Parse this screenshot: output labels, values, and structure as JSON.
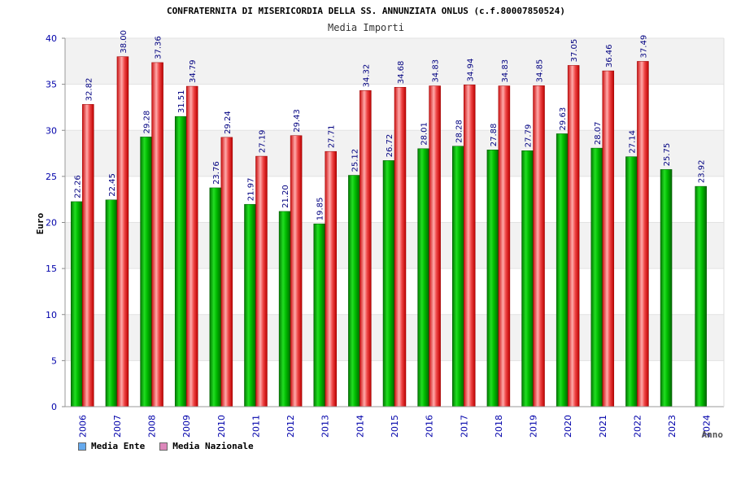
{
  "chart_data": {
    "type": "bar",
    "title": "CONFRATERNITA DI MISERICORDIA DELLA SS. ANNUNZIATA ONLUS (c.f.80007850524)",
    "subtitle": "Media Importi",
    "xlabel": "Anno",
    "ylabel": "Euro",
    "ylim": [
      0,
      40
    ],
    "yticks": [
      0,
      5,
      10,
      15,
      20,
      25,
      30,
      35,
      40
    ],
    "categories": [
      "2006",
      "2007",
      "2008",
      "2009",
      "2010",
      "2011",
      "2012",
      "2013",
      "2014",
      "2015",
      "2016",
      "2017",
      "2018",
      "2019",
      "2020",
      "2021",
      "2022",
      "2023",
      "2024"
    ],
    "series": [
      {
        "name": "Media Ente",
        "color": "#00aa00",
        "legend_color": "#66aaee",
        "values": [
          22.26,
          22.45,
          29.28,
          31.51,
          23.76,
          21.97,
          21.2,
          19.85,
          25.12,
          26.72,
          28.01,
          28.28,
          27.88,
          27.79,
          29.63,
          28.07,
          27.14,
          25.75,
          23.92
        ],
        "labels": [
          "22.26",
          "22.45",
          "29.28",
          "31.51",
          "23.76",
          "21.97",
          "21.20",
          "19.85",
          "25.12",
          "26.72",
          "28.01",
          "28.28",
          "27.88",
          "27.79",
          "29.63",
          "28.07",
          "27.14",
          "25.75",
          "23.92"
        ]
      },
      {
        "name": "Media Nazionale",
        "color": "#ee2222",
        "legend_color": "#dd88bb",
        "values": [
          32.82,
          38.0,
          37.36,
          34.79,
          29.24,
          27.19,
          29.43,
          27.71,
          34.32,
          34.68,
          34.83,
          34.94,
          34.83,
          34.85,
          37.05,
          36.46,
          37.49,
          null,
          null
        ],
        "labels": [
          "32.82",
          "38.00",
          "37.36",
          "34.79",
          "29.24",
          "27.19",
          "29.43",
          "27.71",
          "34.32",
          "34.68",
          "34.83",
          "34.94",
          "34.83",
          "34.85",
          "37.05",
          "36.46",
          "37.49",
          null,
          null
        ]
      }
    ],
    "grid": true,
    "legend": "bottom-left"
  }
}
